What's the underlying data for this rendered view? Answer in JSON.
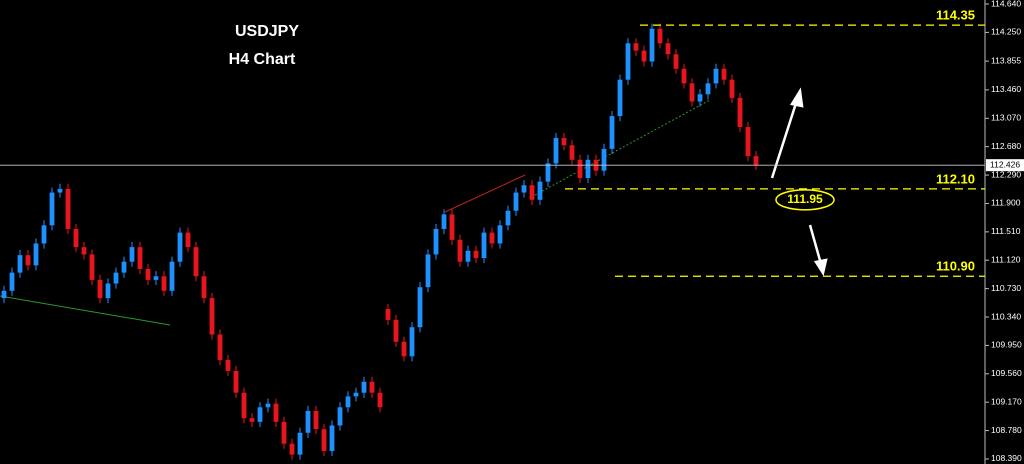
{
  "chart_data": {
    "type": "candlestick",
    "title": "USDJPY",
    "subtitle": "H4 Chart",
    "open": [
      110.6,
      110.7,
      110.95,
      111.19,
      111.05,
      111.35,
      111.6,
      112.05,
      112.1,
      111.55,
      111.3,
      111.2,
      110.85,
      110.6,
      110.8,
      110.95,
      111.1,
      111.3,
      111.0,
      110.85,
      110.9,
      110.7,
      111.1,
      111.5,
      111.3,
      110.9,
      110.6,
      110.1,
      109.75,
      109.6,
      109.3,
      108.95,
      108.9,
      109.1,
      109.15,
      108.9,
      108.6,
      108.45,
      108.75,
      109.05,
      108.8,
      108.5,
      108.85,
      109.1,
      109.25,
      109.3,
      109.45,
      109.3,
      110.45,
      110.3,
      110.0,
      109.8,
      110.2,
      110.75,
      111.2,
      111.55,
      111.75,
      111.4,
      111.1,
      111.25,
      111.15,
      111.5,
      111.35,
      111.6,
      111.8,
      112.05,
      112.15,
      111.95,
      112.2,
      112.45,
      112.8,
      112.7,
      112.5,
      112.25,
      112.5,
      112.35,
      112.65,
      113.1,
      113.6,
      114.1,
      114.0,
      113.85,
      114.3,
      114.1,
      113.95,
      113.75,
      113.55,
      113.3,
      113.4,
      113.55,
      113.75,
      113.6,
      113.35,
      112.95,
      112.55
    ],
    "high": [
      110.77,
      111.02,
      111.26,
      111.26,
      111.42,
      111.67,
      112.12,
      112.17,
      112.17,
      111.62,
      111.37,
      111.27,
      110.92,
      110.87,
      111.02,
      111.17,
      111.37,
      111.37,
      111.07,
      110.97,
      110.97,
      111.17,
      111.57,
      111.57,
      111.37,
      110.97,
      110.67,
      110.17,
      109.82,
      109.67,
      109.37,
      109.02,
      109.17,
      109.22,
      109.22,
      108.97,
      108.67,
      108.82,
      109.12,
      109.12,
      108.87,
      108.92,
      109.17,
      109.32,
      109.37,
      109.52,
      109.52,
      109.37,
      110.52,
      110.37,
      110.07,
      110.27,
      110.82,
      111.27,
      111.62,
      111.82,
      111.82,
      111.47,
      111.32,
      111.32,
      111.57,
      111.57,
      111.67,
      111.87,
      112.12,
      112.22,
      112.22,
      112.27,
      112.52,
      112.87,
      112.87,
      112.77,
      112.57,
      112.57,
      112.57,
      112.72,
      113.17,
      113.67,
      114.17,
      114.17,
      114.07,
      114.37,
      114.37,
      114.17,
      114.02,
      113.82,
      113.62,
      113.47,
      113.62,
      113.82,
      113.82,
      113.67,
      113.42,
      113.02,
      112.62
    ],
    "low": [
      110.53,
      110.63,
      110.88,
      110.98,
      110.98,
      111.28,
      111.53,
      111.98,
      111.48,
      111.23,
      111.13,
      110.78,
      110.53,
      110.53,
      110.73,
      110.88,
      111.03,
      110.93,
      110.78,
      110.78,
      110.63,
      110.63,
      111.03,
      111.23,
      110.83,
      110.53,
      110.03,
      109.68,
      109.53,
      109.23,
      108.88,
      108.83,
      108.83,
      109.03,
      108.83,
      108.53,
      108.38,
      108.38,
      108.68,
      108.73,
      108.43,
      108.43,
      108.78,
      109.03,
      109.18,
      109.23,
      109.23,
      109.03,
      110.23,
      109.93,
      109.73,
      109.73,
      110.13,
      110.68,
      111.13,
      111.48,
      111.33,
      111.03,
      111.03,
      111.08,
      111.08,
      111.28,
      111.28,
      111.53,
      111.73,
      111.98,
      111.88,
      111.88,
      112.13,
      112.38,
      112.63,
      112.43,
      112.18,
      112.18,
      112.28,
      112.28,
      112.58,
      113.03,
      113.53,
      113.93,
      113.78,
      113.78,
      114.03,
      113.88,
      113.68,
      113.48,
      113.23,
      113.23,
      113.33,
      113.48,
      113.53,
      113.28,
      112.88,
      112.48,
      112.36
    ],
    "close": [
      110.7,
      110.95,
      111.19,
      111.05,
      111.35,
      111.6,
      112.05,
      112.1,
      111.55,
      111.3,
      111.2,
      110.85,
      110.6,
      110.8,
      110.95,
      111.1,
      111.3,
      111.0,
      110.85,
      110.9,
      110.7,
      111.1,
      111.5,
      111.3,
      110.9,
      110.6,
      110.1,
      109.75,
      109.6,
      109.3,
      108.95,
      108.9,
      109.1,
      109.15,
      108.9,
      108.6,
      108.45,
      108.75,
      109.05,
      108.8,
      108.5,
      108.85,
      109.1,
      109.25,
      109.3,
      109.45,
      109.3,
      109.1,
      110.3,
      110.0,
      109.8,
      110.2,
      110.75,
      111.2,
      111.55,
      111.75,
      111.4,
      111.1,
      111.25,
      111.15,
      111.5,
      111.35,
      111.6,
      111.8,
      112.05,
      112.15,
      111.95,
      112.2,
      112.45,
      112.8,
      112.7,
      112.5,
      112.25,
      112.5,
      112.35,
      112.65,
      113.1,
      113.6,
      114.1,
      114.0,
      113.85,
      114.3,
      114.1,
      113.95,
      113.75,
      113.55,
      113.3,
      113.4,
      113.55,
      113.75,
      113.6,
      113.35,
      112.95,
      112.55,
      112.43
    ],
    "up_color": "#1e90ff",
    "down_color": "#e8141e",
    "ylim": [
      108.321,
      114.695
    ],
    "yticks": [
      {
        "value": 114.64,
        "label": "114.640"
      },
      {
        "value": 114.25,
        "label": "114.250"
      },
      113.855,
      {
        "value": 113.46,
        "label": "113.460"
      },
      {
        "value": 113.07,
        "label": "113.070"
      },
      {
        "value": 112.68,
        "label": "112.680"
      },
      {
        "value": 112.29,
        "label": "112.290"
      },
      {
        "value": 111.9,
        "label": "111.900"
      },
      {
        "value": 111.51,
        "label": "111.510"
      },
      {
        "value": 111.12,
        "label": "111.120"
      },
      {
        "value": 110.73,
        "label": "110.730"
      },
      {
        "value": 110.34,
        "label": "110.340"
      },
      {
        "value": 109.95,
        "label": "109.950"
      },
      {
        "value": 109.56,
        "label": "109.560"
      },
      {
        "value": 109.17,
        "label": "109.170"
      },
      {
        "value": 108.78,
        "label": "108.780"
      },
      {
        "value": 108.39,
        "label": "108.390"
      }
    ],
    "current_price": 112.426,
    "levels": [
      114.35,
      {
        "value": 112.1,
        "label": "112.10"
      },
      {
        "value": 110.9,
        "label": "110.90"
      }
    ],
    "level_color": "#ffff00",
    "target": 111.95,
    "grid": false
  }
}
